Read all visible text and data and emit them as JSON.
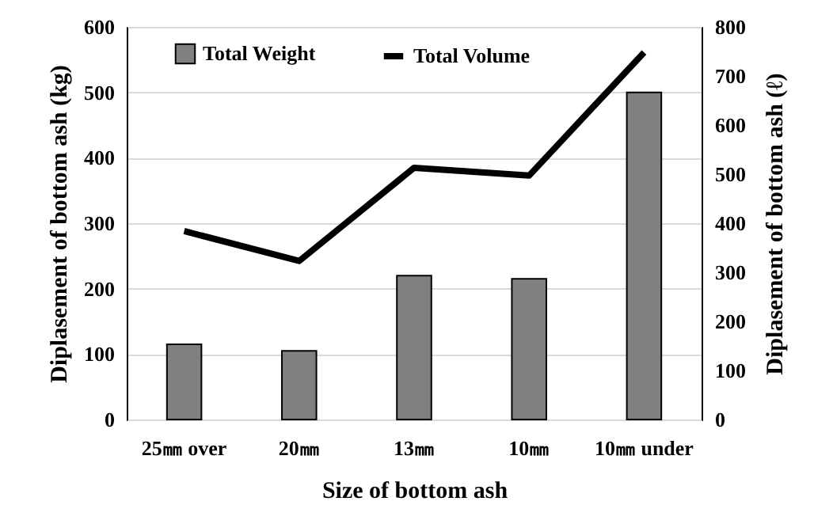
{
  "chart_data": {
    "type": "bar",
    "xlabel": "Size of bottom ash",
    "ylabel": "Diplasement of bottom ash (kg)",
    "y2label": "Diplasement of bottom ash (ℓ)",
    "categories": [
      "25㎜ over",
      "20㎜",
      "13㎜",
      "10㎜",
      "10㎜ under"
    ],
    "series": [
      {
        "name": "Total Weight",
        "color": "#808080",
        "values": [
          115,
          105,
          220,
          215,
          500
        ]
      },
      {
        "name": "Total Volume",
        "type": "line",
        "axis": "y2",
        "color": "#000000",
        "values": [
          384,
          323,
          513,
          497,
          748
        ]
      }
    ],
    "ylim": [
      0,
      600
    ],
    "yticks": [
      0,
      100,
      200,
      300,
      400,
      500,
      600
    ],
    "y2lim": [
      0,
      800
    ],
    "y2ticks": [
      0,
      100,
      200,
      300,
      400,
      500,
      600,
      700,
      800
    ],
    "grid": "y",
    "legend": "top"
  }
}
